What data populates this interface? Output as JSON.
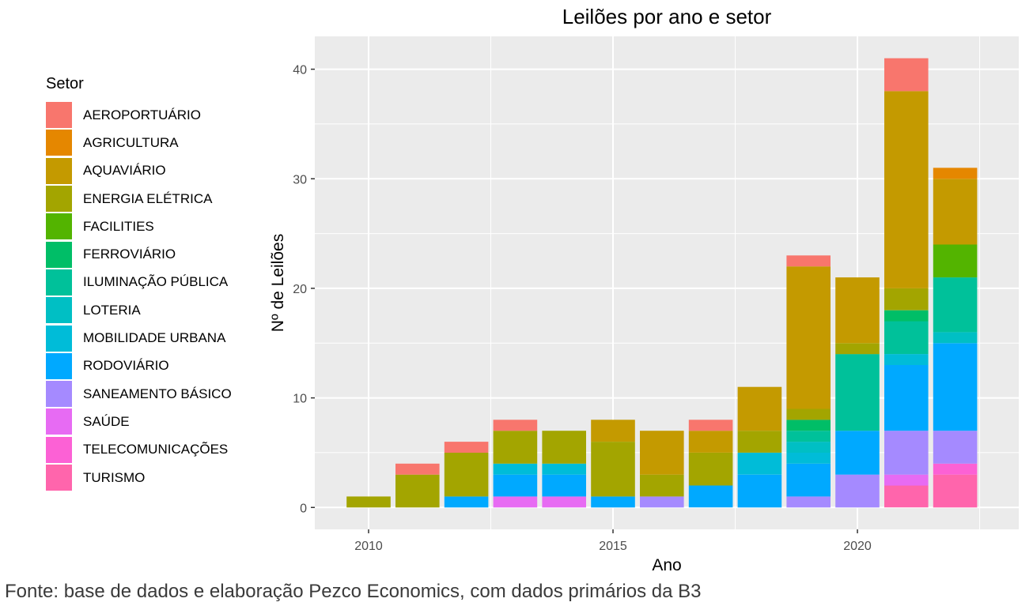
{
  "chart_data": {
    "type": "bar",
    "stacked": true,
    "title": "Leilões por ano e setor",
    "xlabel": "Ano",
    "ylabel": "Nº de Leilões",
    "xlim": [
      2008.9,
      2023.3
    ],
    "ylim": [
      -2,
      43
    ],
    "x_ticks": [
      2010,
      2015,
      2020
    ],
    "y_ticks": [
      0,
      10,
      20,
      30,
      40
    ],
    "grid": true,
    "legend_title": "Setor",
    "legend_position": "left",
    "categories": [
      2010,
      2011,
      2012,
      2013,
      2014,
      2015,
      2016,
      2017,
      2018,
      2019,
      2020,
      2021,
      2022
    ],
    "series": [
      {
        "name": "TURISMO",
        "color": "#FF65AC",
        "values": [
          0,
          0,
          0,
          0,
          0,
          0,
          0,
          0,
          0,
          0,
          0,
          2,
          3
        ]
      },
      {
        "name": "TELECOMUNICAÇÕES",
        "color": "#FC61D5",
        "values": [
          0,
          0,
          0,
          0,
          0,
          0,
          0,
          0,
          0,
          0,
          0,
          0,
          1
        ]
      },
      {
        "name": "SAÚDE",
        "color": "#E76BF3",
        "values": [
          0,
          0,
          0,
          1,
          1,
          0,
          0,
          0,
          0,
          0,
          0,
          1,
          0
        ]
      },
      {
        "name": "SANEAMENTO BÁSICO",
        "color": "#A58AFF",
        "values": [
          0,
          0,
          0,
          0,
          0,
          0,
          1,
          0,
          0,
          1,
          3,
          4,
          3
        ]
      },
      {
        "name": "RODOVIÁRIO",
        "color": "#00A9FF",
        "values": [
          0,
          0,
          1,
          2,
          2,
          1,
          0,
          2,
          3,
          3,
          4,
          6,
          8
        ]
      },
      {
        "name": "MOBILIDADE URBANA",
        "color": "#00BCD8",
        "values": [
          0,
          0,
          0,
          1,
          1,
          0,
          0,
          0,
          2,
          1,
          0,
          1,
          0
        ]
      },
      {
        "name": "LOTERIA",
        "color": "#00BFC4",
        "values": [
          0,
          0,
          0,
          0,
          0,
          0,
          0,
          0,
          0,
          1,
          0,
          0,
          1
        ]
      },
      {
        "name": "ILUMINAÇÃO PÚBLICA",
        "color": "#00C19A",
        "values": [
          0,
          0,
          0,
          0,
          0,
          0,
          0,
          0,
          0,
          1,
          7,
          3,
          5
        ]
      },
      {
        "name": "FERROVIÁRIO",
        "color": "#00BE67",
        "values": [
          0,
          0,
          0,
          0,
          0,
          0,
          0,
          0,
          0,
          1,
          0,
          1,
          0
        ]
      },
      {
        "name": "FACILITIES",
        "color": "#53B400",
        "values": [
          0,
          0,
          0,
          0,
          0,
          0,
          0,
          0,
          0,
          0,
          0,
          0,
          3
        ]
      },
      {
        "name": "ENERGIA ELÉTRICA",
        "color": "#A3A500",
        "values": [
          1,
          3,
          4,
          3,
          3,
          5,
          2,
          3,
          2,
          1,
          1,
          2,
          0
        ]
      },
      {
        "name": "AQUAVIÁRIO",
        "color": "#C49A00",
        "values": [
          0,
          0,
          0,
          0,
          0,
          2,
          4,
          2,
          4,
          13,
          6,
          18,
          6
        ]
      },
      {
        "name": "AGRICULTURA",
        "color": "#E58700",
        "values": [
          0,
          0,
          0,
          0,
          0,
          0,
          0,
          0,
          0,
          0,
          0,
          0,
          1
        ]
      },
      {
        "name": "AEROPORTUÁRIO",
        "color": "#F8766D",
        "values": [
          0,
          1,
          1,
          1,
          0,
          0,
          0,
          1,
          0,
          1,
          0,
          3,
          0
        ]
      }
    ]
  },
  "legend": {
    "title": "Setor",
    "items": [
      {
        "label": "AEROPORTUÁRIO",
        "color": "#F8766D"
      },
      {
        "label": "AGRICULTURA",
        "color": "#E58700"
      },
      {
        "label": "AQUAVIÁRIO",
        "color": "#C49A00"
      },
      {
        "label": "ENERGIA ELÉTRICA",
        "color": "#A3A500"
      },
      {
        "label": "FACILITIES",
        "color": "#53B400"
      },
      {
        "label": "FERROVIÁRIO",
        "color": "#00BE67"
      },
      {
        "label": "ILUMINAÇÃO PÚBLICA",
        "color": "#00C19A"
      },
      {
        "label": "LOTERIA",
        "color": "#00BFC4"
      },
      {
        "label": "MOBILIDADE URBANA",
        "color": "#00BCD8"
      },
      {
        "label": "RODOVIÁRIO",
        "color": "#00A9FF"
      },
      {
        "label": "SANEAMENTO BÁSICO",
        "color": "#A58AFF"
      },
      {
        "label": "SAÚDE",
        "color": "#E76BF3"
      },
      {
        "label": "TELECOMUNICAÇÕES",
        "color": "#FC61D5"
      },
      {
        "label": "TURISMO",
        "color": "#FF65AC"
      }
    ]
  },
  "caption": "Fonte: base de dados e elaboração Pezco Economics, com dados primários da B3",
  "colors": {
    "panel_background": "#EBEBEB",
    "gridline": "#FFFFFF",
    "text": "#000000",
    "axis_text": "#4D4D4D"
  }
}
